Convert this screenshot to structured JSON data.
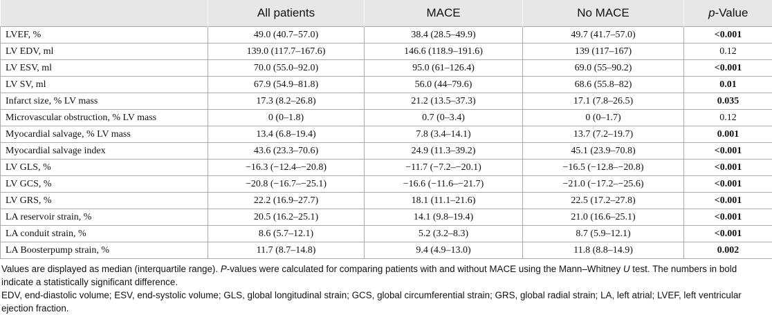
{
  "table": {
    "headers": {
      "label": "",
      "all": "All patients",
      "mace": "MACE",
      "no_mace": "No MACE",
      "pvalue_italic": "p",
      "pvalue_rest": "-Value"
    },
    "rows": [
      {
        "label": "LVEF, %",
        "all": "49.0 (40.7–57.0)",
        "mace": "38.4 (28.5–49.9)",
        "no_mace": "49.7 (41.7–57.0)",
        "p": "<0.001",
        "bold": true
      },
      {
        "label": "LV EDV, ml",
        "all": "139.0 (117.7–167.6)",
        "mace": "146.6 (118.9–191.6)",
        "no_mace": "139 (117–167)",
        "p": "0.12",
        "bold": false
      },
      {
        "label": "LV ESV, ml",
        "all": "70.0 (55.0–92.0)",
        "mace": "95.0 (61–126.4)",
        "no_mace": "69.0 (55–90.2)",
        "p": "<0.001",
        "bold": true
      },
      {
        "label": "LV SV, ml",
        "all": "67.9 (54.9–81.8)",
        "mace": "56.0 (44–79.6)",
        "no_mace": "68.6 (55.8–82)",
        "p": "0.01",
        "bold": true
      },
      {
        "label": "Infarct size, % LV mass",
        "all": "17.3 (8.2–26.8)",
        "mace": "21.2 (13.5–37.3)",
        "no_mace": "17.1 (7.8–26.5)",
        "p": "0.035",
        "bold": true
      },
      {
        "label": "Microvascular obstruction, % LV mass",
        "all": "0 (0–1.8)",
        "mace": "0.7 (0–3.4)",
        "no_mace": "0 (0–1.7)",
        "p": "0.12",
        "bold": false
      },
      {
        "label": "Myocardial salvage, % LV mass",
        "all": "13.4 (6.8–19.4)",
        "mace": "7.8 (3.4–14.1)",
        "no_mace": "13.7 (7.2–19.7)",
        "p": "0.001",
        "bold": true
      },
      {
        "label": "Myocardial salvage index",
        "all": "43.6 (23.3–70.6)",
        "mace": "24.9 (11.3–39.2)",
        "no_mace": "45.1 (23.9–70.8)",
        "p": "<0.001",
        "bold": true
      },
      {
        "label": "LV GLS, %",
        "all": "−16.3 (−12.4–−20.8)",
        "mace": "−11.7 (−7.2–−20.1)",
        "no_mace": "−16.5 (−12.8–−20.8)",
        "p": "<0.001",
        "bold": true
      },
      {
        "label": "LV GCS, %",
        "all": "−20.8 (−16.7–−25.1)",
        "mace": "−16.6 (−11.6–−21.7)",
        "no_mace": "−21.0 (−17.2–−25.6)",
        "p": "<0.001",
        "bold": true
      },
      {
        "label": "LV GRS, %",
        "all": "22.2 (16.9–27.7)",
        "mace": "18.1 (11.1–21.6)",
        "no_mace": "22.5 (17.2–27.8)",
        "p": "<0.001",
        "bold": true
      },
      {
        "label": "LA reservoir strain, %",
        "all": "20.5 (16.2–25.1)",
        "mace": "14.1 (9.8–19.4)",
        "no_mace": "21.0 (16.6–25.1)",
        "p": "<0.001",
        "bold": true
      },
      {
        "label": "LA conduit strain, %",
        "all": "8.6 (5.7–12.1)",
        "mace": "5.2 (3.2–8.3)",
        "no_mace": "8.7 (5.9–12.1)",
        "p": "<0.001",
        "bold": true
      },
      {
        "label": "LA Boosterpump strain, %",
        "all": "11.7 (8.7–14.8)",
        "mace": "9.4 (4.9–13.0)",
        "no_mace": "11.8 (8.8–14.9)",
        "p": "0.002",
        "bold": true
      }
    ]
  },
  "notes": {
    "line1_a": "Values are displayed as median (interquartile range). ",
    "line1_p": "P",
    "line1_b": "-values were calculated for comparing patients with and without MACE using the Mann–Whitney ",
    "line1_u": "U",
    "line1_c": " test. The numbers in bold indicate a statistically significant difference.",
    "line2": "EDV, end-diastolic volume; ESV, end-systolic volume; GLS, global longitudinal strain; GCS, global circumferential strain; GRS, global radial strain; LA, left atrial; LVEF, left ventricular ejection fraction."
  }
}
